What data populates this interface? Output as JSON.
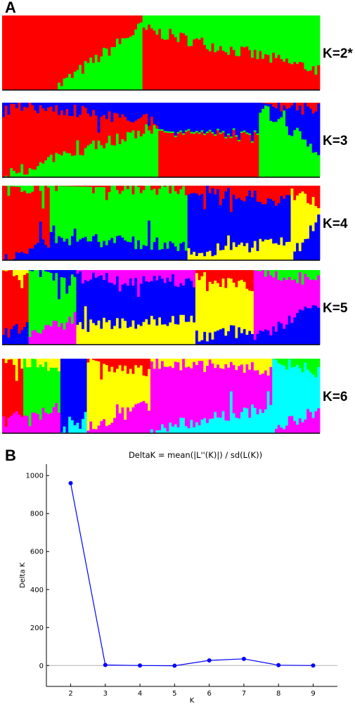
{
  "panels": {
    "a": "A",
    "b": "B"
  },
  "structure_plot": {
    "colors": {
      "red": "#ff0000",
      "green": "#00ff00",
      "blue": "#0000ff",
      "yellow": "#ffff00",
      "magenta": "#ff00ff",
      "cyan": "#00ffff"
    },
    "rows": [
      {
        "k_label": "K=2*",
        "k": 2,
        "layers": [
          [
            "red",
            0.0
          ]
        ],
        "blocks": [
          {
            "from": 0.0,
            "to": 0.16,
            "base": [
              "red"
            ]
          },
          {
            "from": 0.16,
            "to": 0.44,
            "base": [
              "red",
              "green"
            ],
            "start": [
              0.0
            ],
            "end": [
              0.85
            ]
          },
          {
            "from": 0.44,
            "to": 1.0,
            "base": [
              "green",
              "red"
            ],
            "start": [
              0.82
            ],
            "end": [
              0.27
            ]
          }
        ]
      },
      {
        "k_label": "K=3",
        "k": 3,
        "blocks": [
          {
            "from": 0.0,
            "to": 0.49,
            "base": [
              "red",
              "green",
              "blue"
            ],
            "start": [
              0.0,
              0.0
            ],
            "end": [
              0.7,
              0.25
            ]
          },
          {
            "from": 0.49,
            "to": 0.81,
            "base": [
              "green",
              "red",
              "blue"
            ],
            "start": [
              0.9,
              0.55
            ],
            "end": [
              0.55,
              0.45
            ]
          },
          {
            "from": 0.81,
            "to": 1.0,
            "base": [
              "blue",
              "green",
              "red"
            ],
            "start": [
              0.95,
              0.0
            ],
            "end": [
              0.35,
              0.1
            ]
          }
        ]
      },
      {
        "k_label": "K=4",
        "k": 4,
        "blocks": [
          {
            "from": 0.0,
            "to": 0.15,
            "base": [
              "red",
              "blue",
              "green"
            ],
            "start": [
              0.0,
              0.0
            ],
            "end": [
              0.25,
              0.05
            ]
          },
          {
            "from": 0.15,
            "to": 0.58,
            "base": [
              "green",
              "blue",
              "red"
            ],
            "start": [
              0.3,
              0.0
            ],
            "end": [
              0.2,
              0.05
            ]
          },
          {
            "from": 0.58,
            "to": 0.91,
            "base": [
              "blue",
              "yellow",
              "red"
            ],
            "start": [
              0.1,
              0.05
            ],
            "end": [
              0.25,
              0.2
            ]
          },
          {
            "from": 0.91,
            "to": 1.0,
            "base": [
              "yellow",
              "blue",
              "red"
            ],
            "start": [
              0.05,
              0.05
            ],
            "end": [
              0.55,
              0.25
            ]
          }
        ]
      },
      {
        "k_label": "K=5",
        "k": 5,
        "blocks": [
          {
            "from": 0.0,
            "to": 0.08,
            "base": [
              "red",
              "blue",
              "yellow"
            ],
            "start": [
              0.1,
              0.0
            ],
            "end": [
              0.3,
              0.1
            ]
          },
          {
            "from": 0.08,
            "to": 0.23,
            "base": [
              "green",
              "magenta",
              "blue"
            ],
            "start": [
              0.1,
              0.0
            ],
            "end": [
              0.35,
              0.15
            ]
          },
          {
            "from": 0.23,
            "to": 0.61,
            "base": [
              "blue",
              "yellow",
              "magenta"
            ],
            "start": [
              0.25,
              0.1
            ],
            "end": [
              0.35,
              0.15
            ]
          },
          {
            "from": 0.61,
            "to": 0.79,
            "base": [
              "yellow",
              "blue",
              "red"
            ],
            "start": [
              0.1,
              0.1
            ],
            "end": [
              0.2,
              0.2
            ]
          },
          {
            "from": 0.79,
            "to": 1.0,
            "base": [
              "magenta",
              "blue",
              "green"
            ],
            "start": [
              0.05,
              0.0
            ],
            "end": [
              0.55,
              0.15
            ]
          }
        ]
      },
      {
        "k_label": "K=6",
        "k": 6,
        "blocks": [
          {
            "from": 0.0,
            "to": 0.07,
            "base": [
              "red",
              "magenta",
              "yellow"
            ],
            "start": [
              0.15,
              0.05
            ],
            "end": [
              0.3,
              0.1
            ]
          },
          {
            "from": 0.07,
            "to": 0.18,
            "base": [
              "green",
              "magenta",
              "yellow"
            ],
            "start": [
              0.15,
              0.05
            ],
            "end": [
              0.35,
              0.15
            ]
          },
          {
            "from": 0.18,
            "to": 0.27,
            "base": [
              "blue",
              "cyan"
            ],
            "start": [
              0.0
            ],
            "end": [
              0.15
            ]
          },
          {
            "from": 0.27,
            "to": 0.47,
            "base": [
              "yellow",
              "magenta",
              "red"
            ],
            "start": [
              0.05,
              0.05
            ],
            "end": [
              0.4,
              0.2
            ]
          },
          {
            "from": 0.47,
            "to": 0.85,
            "base": [
              "magenta",
              "cyan",
              "yellow"
            ],
            "start": [
              0.05,
              0.05
            ],
            "end": [
              0.35,
              0.15
            ]
          },
          {
            "from": 0.85,
            "to": 1.0,
            "base": [
              "cyan",
              "magenta",
              "green"
            ],
            "start": [
              0.05,
              0.0
            ],
            "end": [
              0.3,
              0.2
            ]
          }
        ]
      }
    ]
  },
  "chart_data": {
    "type": "line",
    "title": "DeltaK = mean(|L''(K)|) / sd(L(K))",
    "xlabel": "K",
    "ylabel": "Delta K",
    "x": [
      2,
      3,
      4,
      5,
      6,
      7,
      8,
      9
    ],
    "series": [
      {
        "values": [
          960,
          3,
          0,
          -1,
          27,
          35,
          2,
          0
        ],
        "color": "#0000ff"
      }
    ],
    "x_ticks": [
      2,
      3,
      4,
      5,
      6,
      7,
      8,
      9
    ],
    "y_ticks": [
      0,
      200,
      400,
      600,
      800,
      1000
    ],
    "xlim": [
      1.3,
      9.7
    ],
    "ylim": [
      -110,
      1060
    ],
    "reference_line_y": 0,
    "grid": false,
    "legend": "none"
  }
}
